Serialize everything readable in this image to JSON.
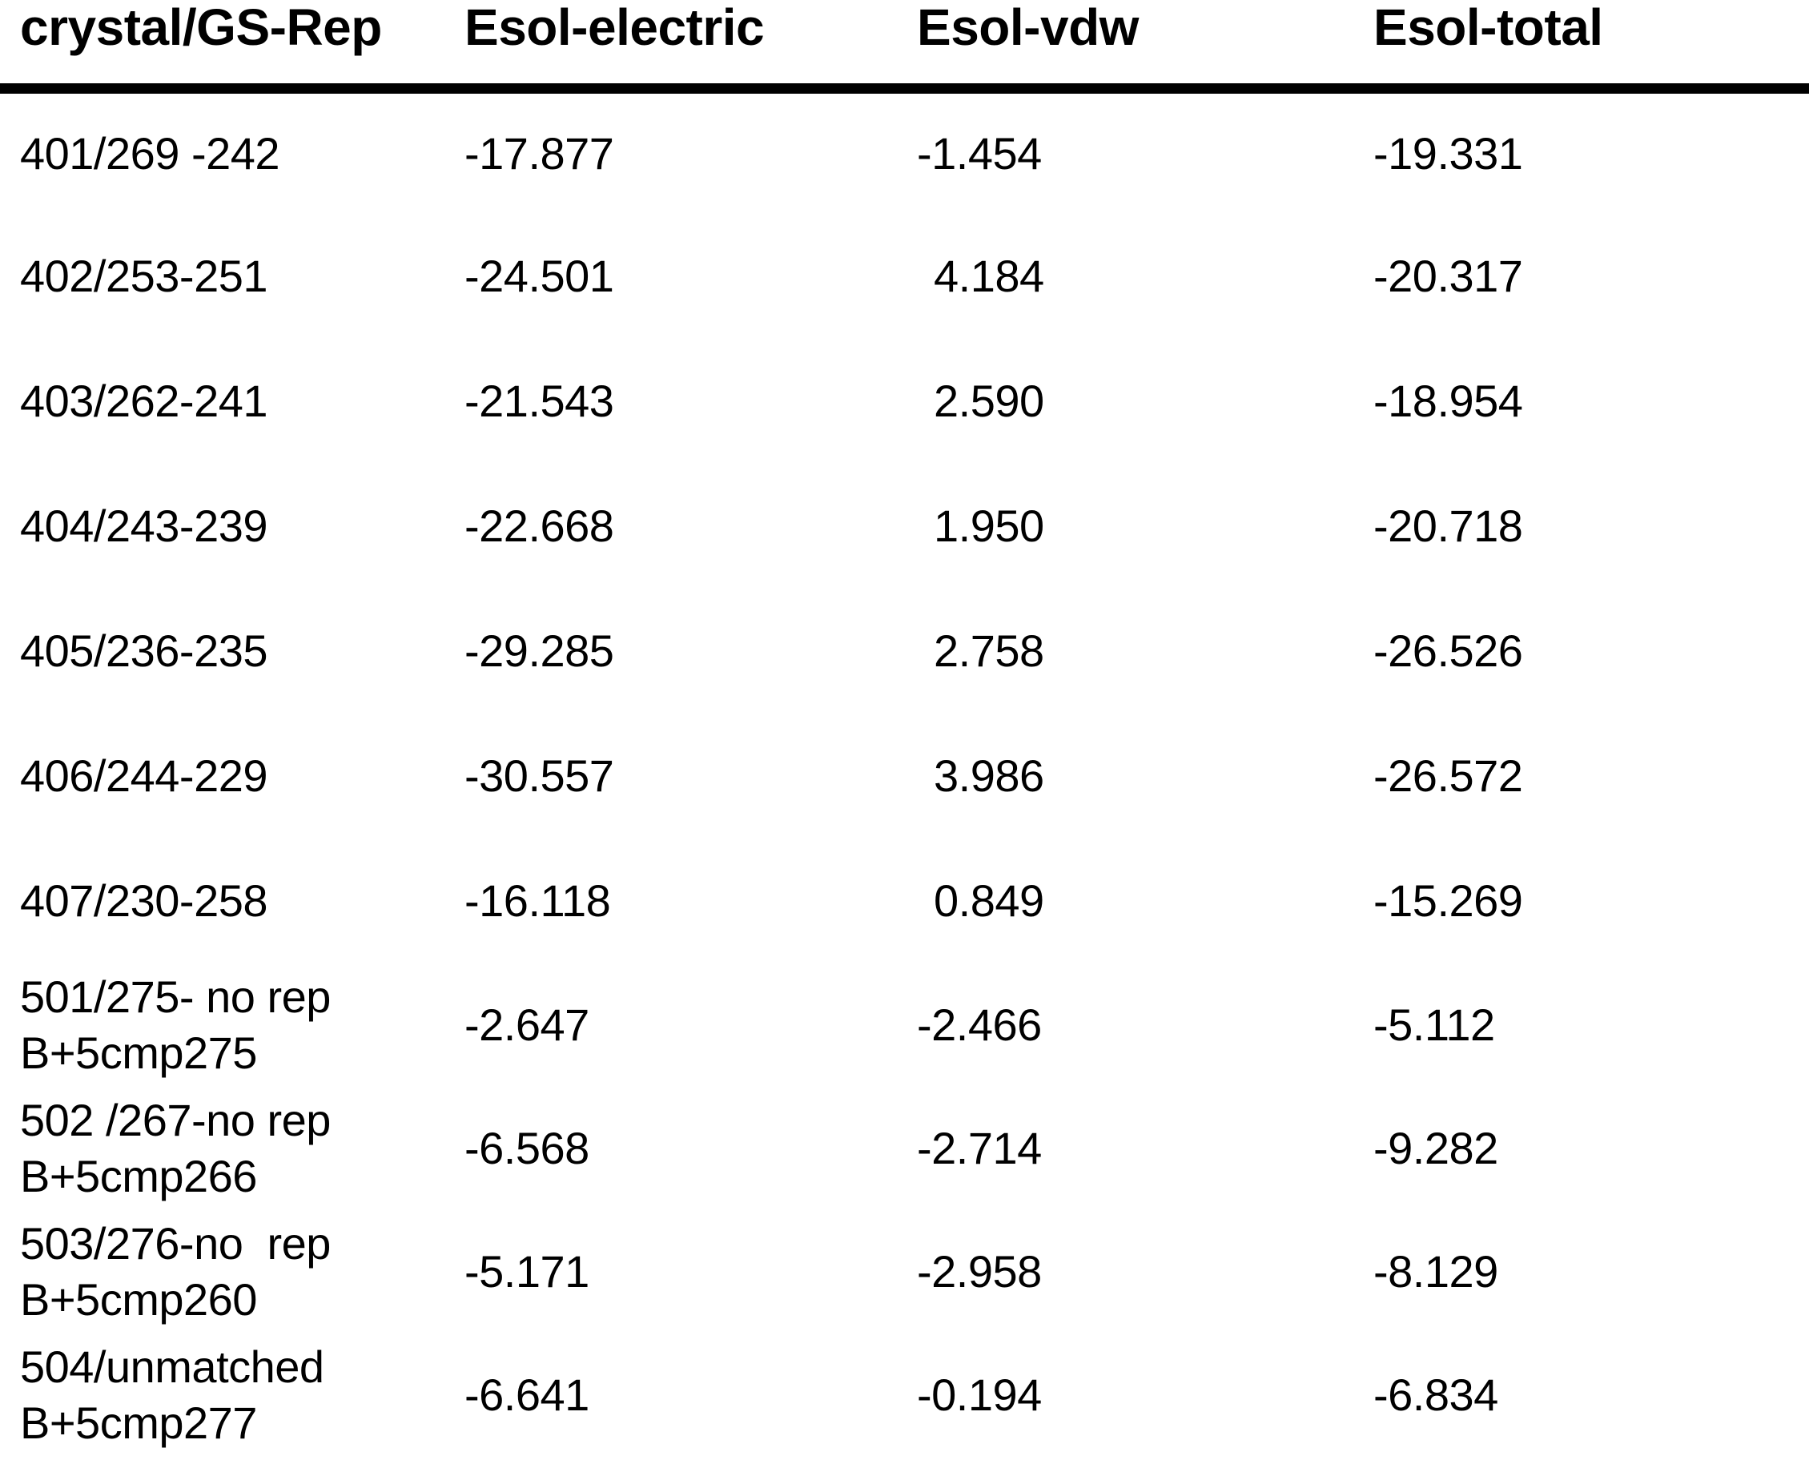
{
  "chart_data": {
    "type": "table",
    "columns": [
      "crystal/GS-Rep",
      "Esol-electric",
      "Esol-vdw",
      "Esol-total"
    ],
    "rows": [
      {
        "crystal": "401/269 -242",
        "crystal2": "",
        "electric": "-17.877",
        "vdw": "-1.454",
        "total": "-19.331"
      },
      {
        "crystal": "402/253-251",
        "crystal2": "",
        "electric": "-24.501",
        "vdw": "4.184",
        "total": "-20.317"
      },
      {
        "crystal": "403/262-241",
        "crystal2": "",
        "electric": "-21.543",
        "vdw": "2.590",
        "total": "-18.954"
      },
      {
        "crystal": "404/243-239",
        "crystal2": "",
        "electric": "-22.668",
        "vdw": "1.950",
        "total": "-20.718"
      },
      {
        "crystal": "405/236-235",
        "crystal2": "",
        "electric": "-29.285",
        "vdw": "2.758",
        "total": "-26.526"
      },
      {
        "crystal": "406/244-229",
        "crystal2": "",
        "electric": "-30.557",
        "vdw": "3.986",
        "total": "-26.572"
      },
      {
        "crystal": "407/230-258",
        "crystal2": "",
        "electric": "-16.118",
        "vdw": "0.849",
        "total": "-15.269"
      },
      {
        "crystal": "501/275- no rep",
        "crystal2": "B+5cmp275",
        "electric": "-2.647",
        "vdw": "-2.466",
        "total": "-5.112"
      },
      {
        "crystal": "502 /267-no rep",
        "crystal2": "B+5cmp266",
        "electric": "-6.568",
        "vdw": "-2.714",
        "total": "-9.282"
      },
      {
        "crystal": "503/276-no  rep",
        "crystal2": "B+5cmp260",
        "electric": "-5.171",
        "vdw": "-2.958",
        "total": "-8.129"
      },
      {
        "crystal": "504/unmatched",
        "crystal2": "B+5cmp277",
        "electric": "-6.641",
        "vdw": "-0.194",
        "total": "-6.834"
      }
    ],
    "text_color": "#000000",
    "background_color": "#ffffff",
    "header_rule_color": "#000000"
  }
}
